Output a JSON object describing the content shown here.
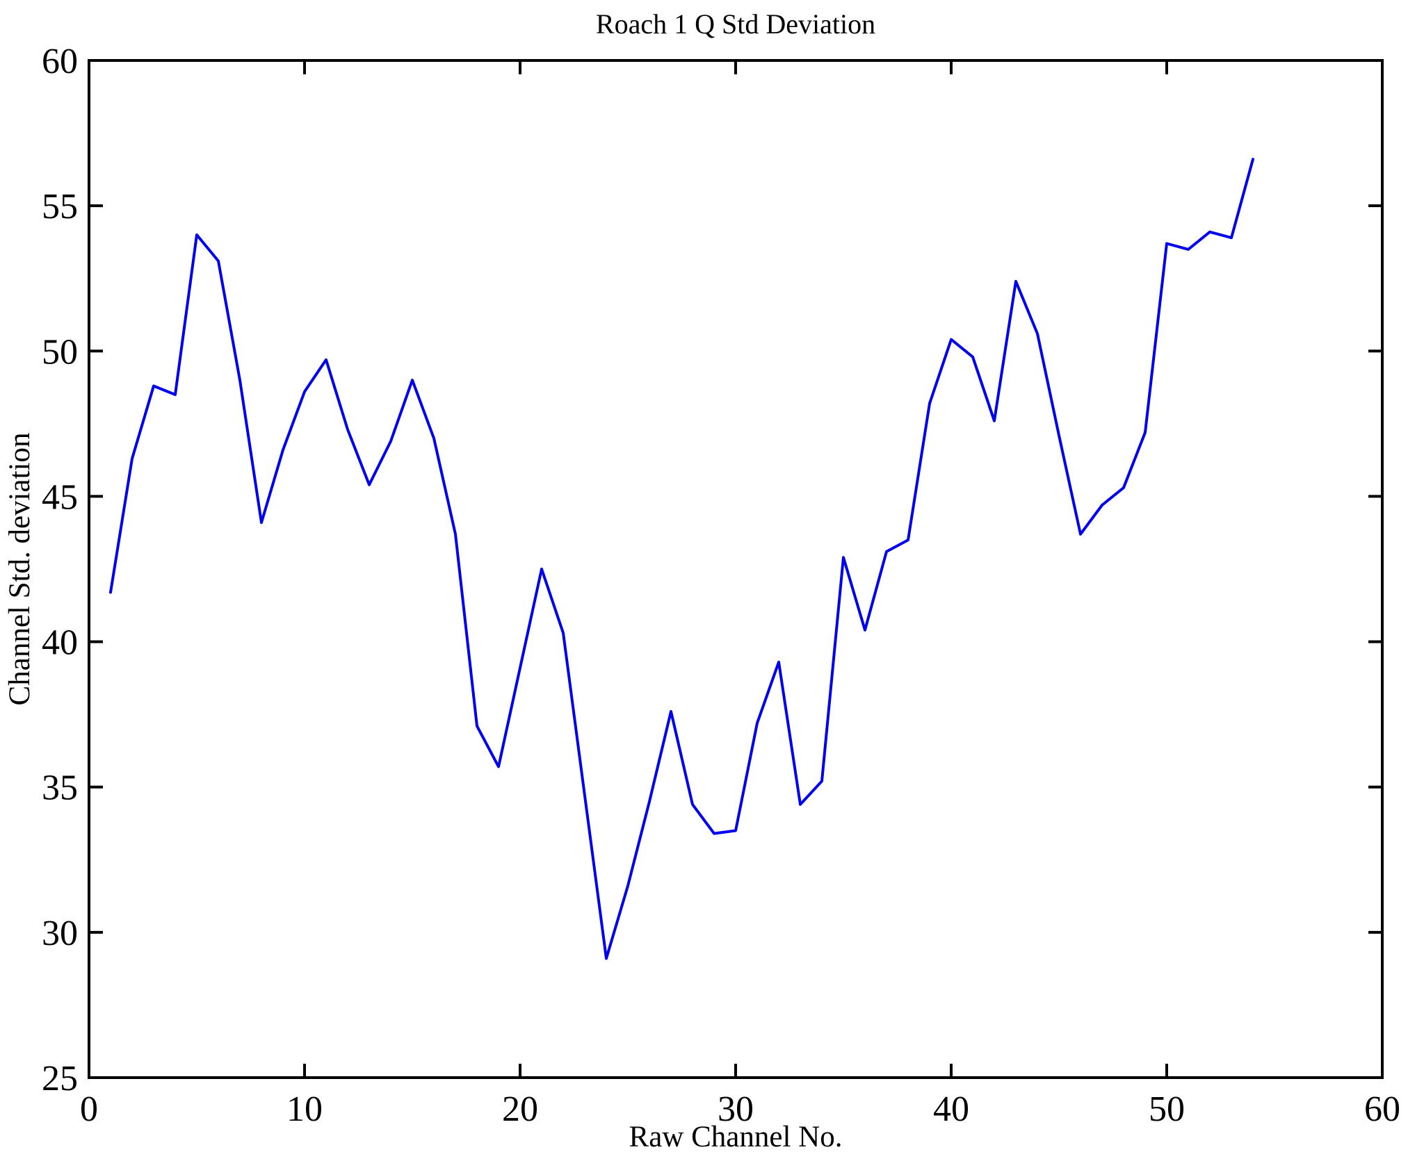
{
  "chart_data": {
    "type": "line",
    "title": "Roach 1 Q Std Deviation",
    "xlabel": "Raw Channel No.",
    "ylabel": "Channel Std. deviation",
    "xlim": [
      0,
      60
    ],
    "ylim": [
      25,
      60
    ],
    "xticks": [
      0,
      10,
      20,
      30,
      40,
      50,
      60
    ],
    "yticks": [
      25,
      30,
      35,
      40,
      45,
      50,
      55,
      60
    ],
    "grid": false,
    "legend": "none",
    "line_color": "#0000EE",
    "axis_color": "#000000",
    "background_color": "#ffffff",
    "x": [
      1,
      2,
      3,
      4,
      5,
      6,
      7,
      8,
      9,
      10,
      11,
      12,
      13,
      14,
      15,
      16,
      17,
      18,
      19,
      20,
      21,
      22,
      23,
      24,
      25,
      26,
      27,
      28,
      29,
      30,
      31,
      32,
      33,
      34,
      35,
      36,
      37,
      38,
      39,
      40,
      41,
      42,
      43,
      44,
      45,
      46,
      47,
      48,
      49,
      50,
      51,
      52,
      53,
      54
    ],
    "values": [
      41.7,
      46.3,
      48.8,
      48.5,
      54.0,
      53.1,
      49.0,
      44.1,
      46.6,
      48.6,
      49.7,
      47.3,
      45.4,
      46.9,
      49.0,
      47.0,
      43.7,
      37.1,
      35.7,
      39.1,
      42.5,
      40.3,
      34.7,
      29.1,
      31.6,
      34.5,
      37.6,
      34.4,
      33.4,
      33.5,
      37.2,
      39.3,
      34.4,
      35.2,
      42.9,
      40.4,
      43.1,
      43.5,
      48.2,
      50.4,
      49.8,
      47.6,
      52.4,
      50.6,
      47.1,
      43.7,
      44.7,
      45.3,
      47.2,
      53.7,
      53.5,
      54.1,
      53.9,
      56.6
    ]
  }
}
